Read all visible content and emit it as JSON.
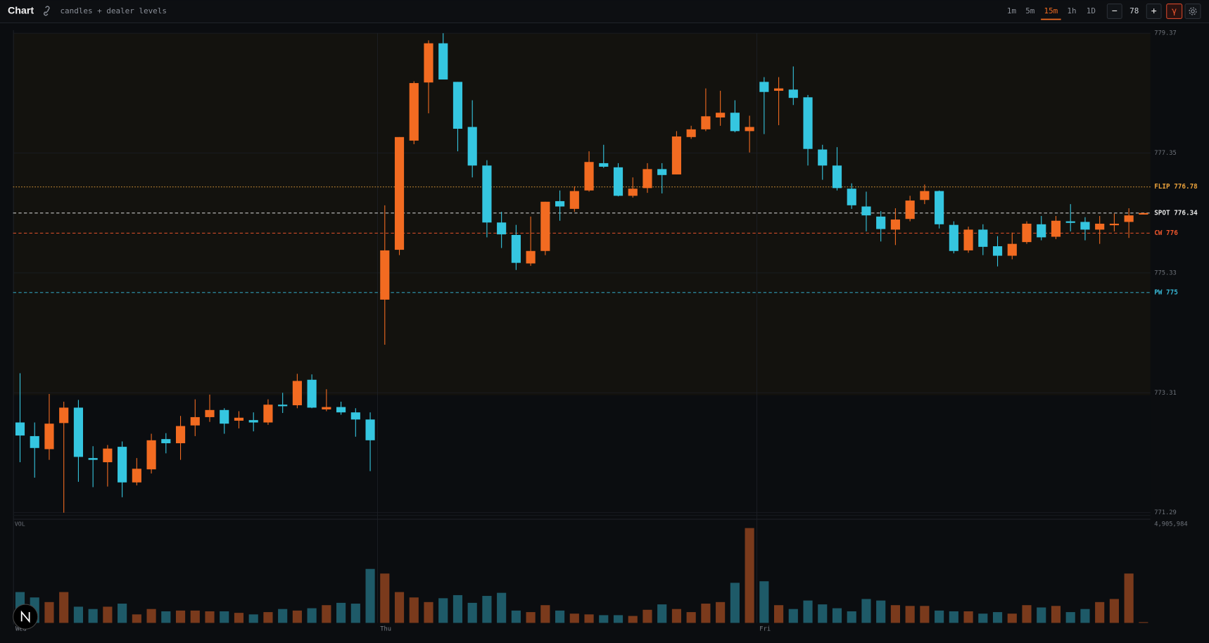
{
  "header": {
    "title": "Chart",
    "subtitle": "candles + dealer levels",
    "timeframes": [
      "1m",
      "5m",
      "15m",
      "1h",
      "1D"
    ],
    "active_index": 2,
    "zoom_out": "−",
    "count": 78,
    "zoom_in": "+",
    "mode": "γ"
  },
  "chart_data": {
    "type": "candlestick",
    "up_color": "#f26b21",
    "down_color": "#35c6e0",
    "ylim": [
      771.29,
      779.37
    ],
    "yticks": [
      779.37,
      777.35,
      775.33,
      773.31,
      771.29
    ],
    "grid": true,
    "x_labels": [
      {
        "label": "Wed",
        "index": 0
      },
      {
        "label": "Thu",
        "index": 25
      },
      {
        "label": "Fri",
        "index": 51
      }
    ],
    "levels": [
      {
        "label": "FLIP 776.78",
        "value": 776.78,
        "color": "#e9a13b",
        "style": "dotted"
      },
      {
        "label": "SPOT 776.34",
        "value": 776.34,
        "color": "#e6e6e6",
        "style": "dashed"
      },
      {
        "label": "CW 776",
        "value": 776,
        "color": "#f0562c",
        "style": "dashed"
      },
      {
        "label": "PW 775",
        "value": 775,
        "color": "#37b6d4",
        "style": "dashed"
      }
    ],
    "open": [
      772.81,
      772.58,
      772.36,
      772.8,
      773.06,
      772.21,
      772.14,
      772.4,
      771.8,
      772.02,
      772.53,
      772.46,
      772.76,
      772.9,
      773.02,
      772.84,
      772.85,
      772.81,
      773.11,
      773.1,
      773.53,
      773.03,
      773.07,
      772.98,
      772.86,
      774.88,
      775.72,
      777.56,
      778.54,
      779.2,
      778.55,
      777.79,
      777.14,
      776.18,
      775.97,
      775.49,
      775.7,
      776.54,
      776.41,
      776.72,
      777.18,
      777.11,
      776.63,
      776.76,
      777.08,
      776.99,
      777.62,
      777.75,
      777.95,
      778.03,
      777.72,
      778.55,
      778.4,
      778.42,
      778.29,
      777.41,
      777.14,
      776.75,
      776.45,
      776.28,
      776.06,
      776.24,
      776.56,
      776.71,
      776.14,
      775.71,
      776.06,
      775.78,
      775.62,
      775.85,
      776.15,
      775.94,
      776.2,
      776.19,
      776.06,
      776.15,
      776.19,
      776.33
    ],
    "high": [
      773.64,
      772.81,
      773.29,
      773.16,
      773.19,
      772.41,
      772.43,
      772.49,
      772.21,
      772.62,
      772.63,
      772.92,
      773.2,
      773.28,
      773.05,
      773.0,
      772.98,
      773.2,
      773.31,
      773.63,
      773.62,
      773.37,
      773.16,
      773.05,
      772.98,
      776.47,
      777.62,
      778.56,
      779.25,
      779.37,
      778.55,
      778.24,
      777.23,
      776.36,
      776.14,
      776.28,
      776.53,
      776.72,
      776.79,
      777.38,
      777.49,
      777.18,
      776.94,
      777.18,
      777.18,
      777.72,
      777.81,
      778.44,
      778.4,
      778.24,
      777.98,
      778.63,
      778.63,
      778.81,
      778.33,
      777.49,
      777.45,
      776.84,
      776.7,
      776.37,
      776.42,
      776.63,
      776.82,
      776.72,
      776.2,
      776.11,
      776.15,
      775.95,
      776.01,
      776.2,
      776.29,
      776.29,
      776.49,
      776.27,
      776.29,
      776.33,
      776.42,
      776.34
    ],
    "low": [
      772.14,
      771.88,
      772.18,
      771.29,
      771.81,
      771.72,
      771.73,
      771.55,
      771.75,
      771.95,
      772.29,
      772.18,
      772.58,
      772.82,
      772.62,
      772.71,
      772.66,
      772.77,
      772.97,
      773.05,
      773.05,
      773.0,
      772.94,
      772.57,
      771.99,
      774.12,
      775.63,
      777.5,
      778.02,
      778.59,
      777.38,
      776.94,
      775.93,
      775.75,
      775.38,
      775.45,
      775.63,
      776.21,
      776.36,
      776.7,
      777.1,
      776.62,
      776.6,
      776.68,
      776.67,
      776.99,
      777.59,
      777.72,
      777.81,
      777.7,
      777.36,
      777.67,
      777.82,
      778.16,
      777.14,
      776.9,
      776.72,
      776.41,
      776.03,
      775.86,
      775.8,
      776.2,
      776.49,
      776.08,
      775.66,
      775.67,
      775.63,
      775.44,
      775.56,
      775.82,
      775.88,
      775.9,
      776.03,
      775.88,
      775.82,
      776.03,
      775.92,
      776.33
    ],
    "close": [
      772.59,
      772.38,
      772.79,
      773.06,
      772.23,
      772.18,
      772.37,
      771.8,
      772.03,
      772.51,
      772.46,
      772.75,
      772.9,
      773.02,
      772.79,
      772.89,
      772.81,
      773.11,
      773.09,
      773.51,
      773.06,
      773.07,
      772.98,
      772.86,
      772.51,
      775.71,
      777.62,
      778.53,
      779.2,
      778.59,
      777.76,
      777.14,
      776.18,
      775.98,
      775.5,
      775.7,
      776.53,
      776.45,
      776.71,
      777.2,
      777.12,
      776.63,
      776.75,
      777.08,
      776.98,
      777.63,
      777.75,
      777.97,
      778.03,
      777.72,
      777.79,
      778.38,
      778.44,
      778.28,
      777.42,
      777.14,
      776.76,
      776.47,
      776.3,
      776.07,
      776.23,
      776.55,
      776.71,
      776.15,
      775.7,
      776.06,
      775.77,
      775.62,
      775.82,
      776.16,
      775.93,
      776.21,
      776.19,
      776.06,
      776.16,
      776.16,
      776.3,
      776.34
    ],
    "volume": {
      "label": "VOL",
      "ylim": [
        0,
        4905984
      ],
      "ticks": [
        {
          "value": 4905984,
          "label": "4,905,984"
        }
      ],
      "up_color": "#7a3a1c",
      "down_color": "#1e5a68",
      "values": [
        1595000,
        1316000,
        1077000,
        1595000,
        838000,
        718000,
        838000,
        997000,
        439000,
        718000,
        598000,
        638000,
        638000,
        598000,
        598000,
        519000,
        439000,
        558000,
        718000,
        638000,
        758000,
        917000,
        1037000,
        997000,
        2792000,
        2553000,
        1595000,
        1316000,
        1077000,
        1276000,
        1436000,
        1037000,
        1396000,
        1556000,
        638000,
        558000,
        917000,
        638000,
        479000,
        439000,
        399000,
        399000,
        359000,
        678000,
        957000,
        718000,
        558000,
        997000,
        1077000,
        2074000,
        4905984,
        2154000,
        917000,
        718000,
        1157000,
        957000,
        758000,
        598000,
        1236000,
        1157000,
        917000,
        877000,
        877000,
        638000,
        598000,
        598000,
        479000,
        558000,
        479000,
        917000,
        798000,
        877000,
        558000,
        718000,
        1077000,
        1236000,
        2553000,
        40000
      ]
    }
  }
}
